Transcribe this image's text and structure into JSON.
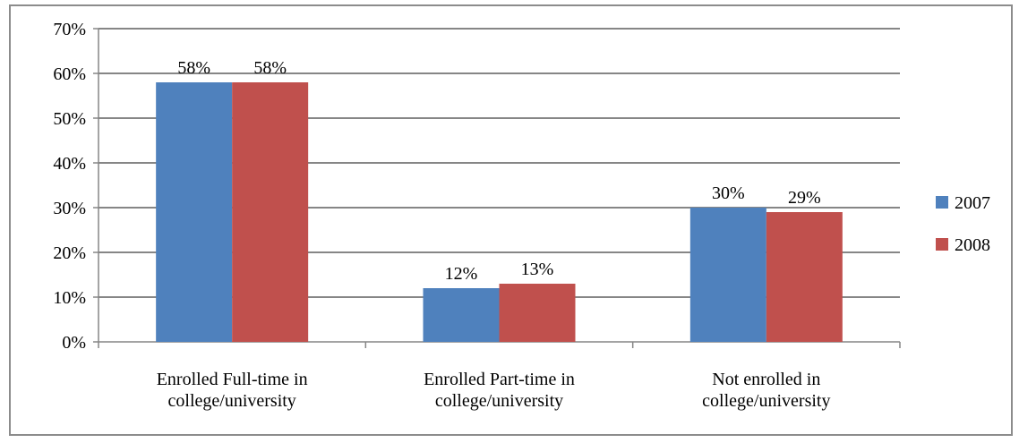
{
  "chart_data": {
    "type": "bar",
    "categories": [
      [
        "Enrolled Full-time in",
        "college/university"
      ],
      [
        "Enrolled Part-time in",
        "college/university"
      ],
      [
        "Not enrolled in",
        "college/university"
      ]
    ],
    "series": [
      {
        "name": "2007",
        "values": [
          58,
          12,
          30
        ],
        "labels": [
          "58%",
          "12%",
          "30%"
        ],
        "color": "#4f81bd"
      },
      {
        "name": "2008",
        "values": [
          58,
          13,
          29
        ],
        "labels": [
          "58%",
          "13%",
          "29%"
        ],
        "color": "#c0504d"
      }
    ],
    "yticks": [
      "0%",
      "10%",
      "20%",
      "30%",
      "40%",
      "50%",
      "60%",
      "70%"
    ],
    "ylim": [
      0,
      70
    ],
    "grid": true,
    "legend_position": "right",
    "title": "",
    "xlabel": "",
    "ylabel": ""
  }
}
